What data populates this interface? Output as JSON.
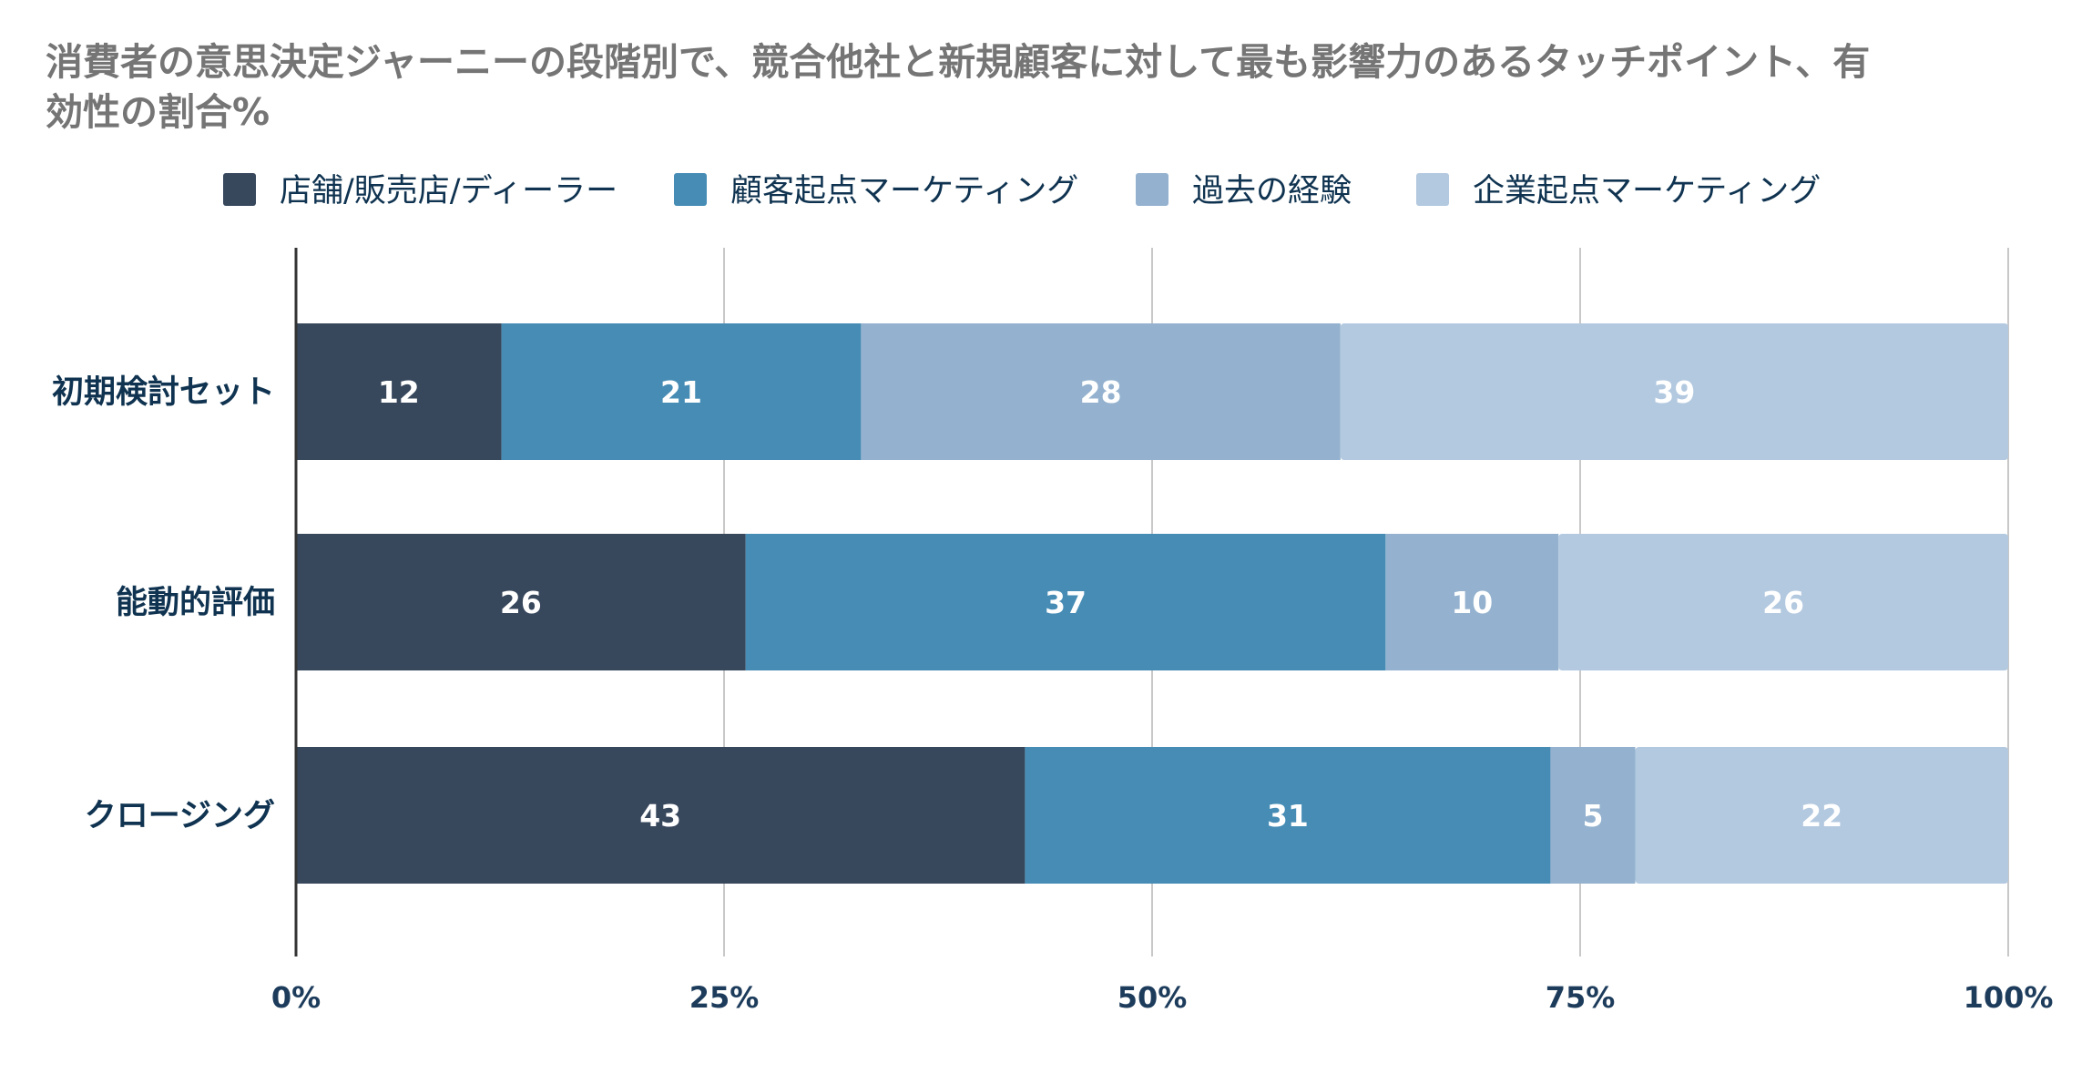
{
  "chart_data": {
    "type": "bar",
    "orientation": "horizontal",
    "stacked": "percent",
    "title": "消費者の意思決定ジャーニーの段階別で、競合他社と新規顧客に対して最も影響力のあるタッチポイント、有効性の割合%",
    "title_lines": [
      "消費者の意思決定ジャーニーの段階別で、競合他社と新規顧客に対して最も影響力のあるタッチポイント、有",
      "効性の割合%"
    ],
    "categories": [
      "初期検討セット",
      "能動的評価",
      "クロージング"
    ],
    "series": [
      {
        "name": "店舗/販売店/ディーラー",
        "color": "#37475c",
        "values": [
          12,
          26,
          43
        ]
      },
      {
        "name": "顧客起点マーケティング",
        "color": "#468cb5",
        "values": [
          21,
          37,
          31
        ]
      },
      {
        "name": "過去の経験",
        "color": "#94b2cf",
        "values": [
          28,
          10,
          5
        ]
      },
      {
        "name": "企業起点マーケティング",
        "color": "#b3c9e0",
        "values": [
          39,
          26,
          22
        ]
      }
    ],
    "xlim": [
      0,
      100
    ],
    "xticks": [
      "0%",
      "25%",
      "50%",
      "75%",
      "100%"
    ],
    "xlabel": "",
    "ylabel": "",
    "grid": true,
    "legend_position": "top"
  }
}
